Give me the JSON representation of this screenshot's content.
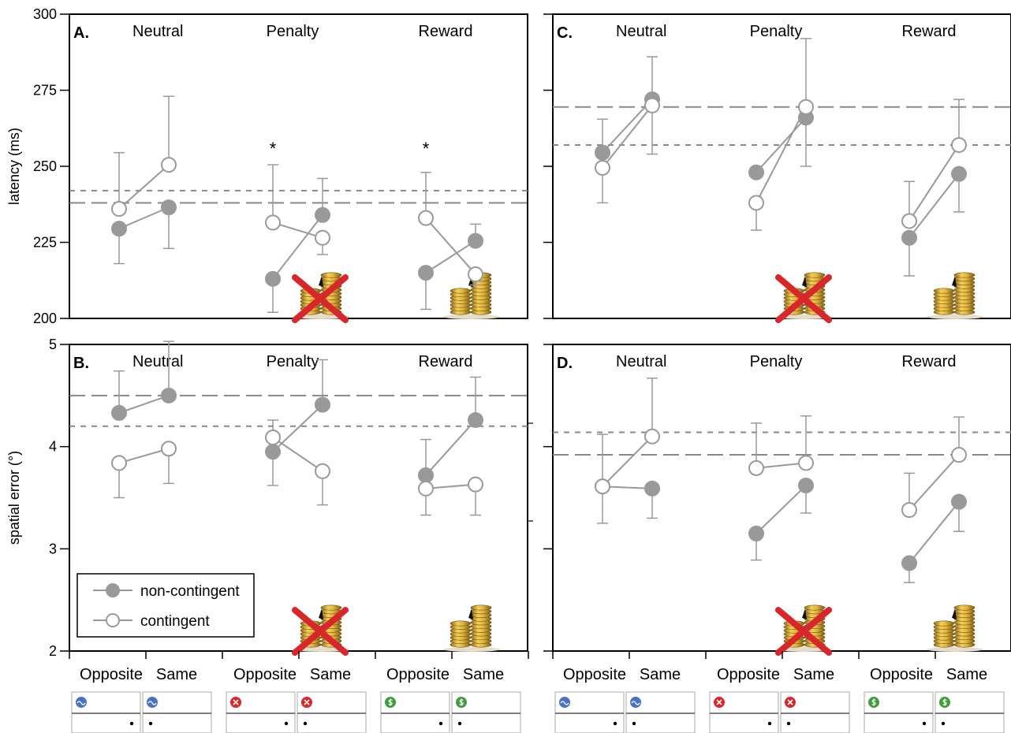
{
  "figure": {
    "legend": {
      "non_contingent": "non-contingent",
      "contingent": "contingent"
    }
  },
  "colors": {
    "series": "#999999",
    "axis": "#000000",
    "reference_line": "#888888",
    "cross": "#d9262b",
    "coin": "#d4a52a",
    "neutral_icon": "#4a72c4",
    "penalty_icon": "#d9262b",
    "reward_icon": "#3f9c3f"
  },
  "icons": {
    "penalty_marker": "crossed-out-coins-icon",
    "reward_marker": "coin-stack-icon",
    "neutral_cue": "wave-icon",
    "penalty_cue": "x-circle-icon",
    "reward_cue": "dollar-icon"
  },
  "chart_data": [
    {
      "panel": "A.",
      "type": "line",
      "ylabel": "latency (ms)",
      "ylim": [
        200,
        300
      ],
      "yticks": [
        "200",
        "225",
        "250",
        "275",
        "300"
      ],
      "conditions": [
        "Neutral",
        "Penalty",
        "Reward"
      ],
      "categories": [
        "Opposite",
        "Same"
      ],
      "series": [
        {
          "name": "non-contingent",
          "marker": "filled",
          "values": [
            [
              229.5,
              236.5
            ],
            [
              213,
              234
            ],
            [
              215,
              225.5
            ]
          ],
          "err_lo": [
            [
              218,
              223
            ],
            [
              202,
              0
            ],
            [
              203,
              0
            ]
          ],
          "err_hi": [
            [
              0,
              0
            ],
            [
              0,
              246
            ],
            [
              0,
              231
            ]
          ]
        },
        {
          "name": "contingent",
          "marker": "open",
          "values": [
            [
              236,
              250.5
            ],
            [
              231.5,
              226.5
            ],
            [
              233,
              214.5
            ]
          ],
          "err_lo": [
            [
              0,
              0
            ],
            [
              0,
              221
            ],
            [
              0,
              211
            ]
          ],
          "err_hi": [
            [
              254.5,
              273
            ],
            [
              250.5,
              0
            ],
            [
              248,
              0
            ]
          ]
        }
      ],
      "reference_lines": [
        {
          "style": "long-dash",
          "y": 238
        },
        {
          "style": "short-dash",
          "y": 242
        }
      ],
      "annotations": [
        {
          "text": "*",
          "condition": "Penalty"
        },
        {
          "text": "*",
          "condition": "Reward"
        }
      ],
      "show_ytick_labels": true
    },
    {
      "panel": "B.",
      "type": "line",
      "ylabel": "spatial error (°)",
      "ylim": [
        2,
        5
      ],
      "yticks": [
        "2",
        "3",
        "4",
        "5"
      ],
      "conditions": [
        "Neutral",
        "Penalty",
        "Reward"
      ],
      "categories": [
        "Opposite",
        "Same"
      ],
      "series": [
        {
          "name": "non-contingent",
          "marker": "filled",
          "values": [
            [
              4.33,
              4.5
            ],
            [
              3.95,
              4.41
            ],
            [
              3.72,
              4.26
            ]
          ],
          "err_lo": [
            [
              0,
              0
            ],
            [
              3.62,
              0
            ],
            [
              0,
              0
            ]
          ],
          "err_hi": [
            [
              4.74,
              5.03
            ],
            [
              0,
              4.85
            ],
            [
              4.07,
              4.68
            ]
          ]
        },
        {
          "name": "contingent",
          "marker": "open",
          "values": [
            [
              3.84,
              3.98
            ],
            [
              4.09,
              3.76
            ],
            [
              3.59,
              3.63
            ]
          ],
          "err_lo": [
            [
              3.5,
              3.64
            ],
            [
              0,
              3.43
            ],
            [
              3.33,
              3.33
            ]
          ],
          "err_hi": [
            [
              0,
              0
            ],
            [
              4.26,
              0
            ],
            [
              0,
              0
            ]
          ]
        }
      ],
      "reference_lines": [
        {
          "style": "long-dash",
          "y": 4.5
        },
        {
          "style": "short-dash",
          "y": 4.2
        }
      ],
      "annotations": [],
      "show_ytick_labels": true
    },
    {
      "panel": "C.",
      "type": "line",
      "ylabel": "",
      "ylim": [
        200,
        300
      ],
      "yticks": [
        "",
        "",
        "",
        "",
        ""
      ],
      "conditions": [
        "Neutral",
        "Penalty",
        "Reward"
      ],
      "categories": [
        "Opposite",
        "Same"
      ],
      "series": [
        {
          "name": "non-contingent",
          "marker": "filled",
          "values": [
            [
              254.5,
              272
            ],
            [
              248,
              266
            ],
            [
              226.5,
              247.5
            ]
          ],
          "err_lo": [
            [
              0,
              0
            ],
            [
              0,
              250
            ],
            [
              214,
              235
            ]
          ],
          "err_hi": [
            [
              265.5,
              286
            ],
            [
              0,
              0
            ],
            [
              0,
              0
            ]
          ]
        },
        {
          "name": "contingent",
          "marker": "open",
          "values": [
            [
              249.5,
              270
            ],
            [
              238,
              269.5
            ],
            [
              232,
              257
            ]
          ],
          "err_lo": [
            [
              238,
              254
            ],
            [
              229,
              0
            ],
            [
              0,
              0
            ]
          ],
          "err_hi": [
            [
              0,
              0
            ],
            [
              0,
              292
            ],
            [
              245,
              272
            ]
          ]
        }
      ],
      "reference_lines": [
        {
          "style": "long-dash",
          "y": 269.5
        },
        {
          "style": "short-dash",
          "y": 257
        }
      ],
      "annotations": [],
      "show_ytick_labels": false
    },
    {
      "panel": "D.",
      "type": "line",
      "ylabel": "",
      "ylim": [
        2,
        5
      ],
      "yticks": [
        "",
        "",
        "",
        ""
      ],
      "conditions": [
        "Neutral",
        "Penalty",
        "Reward"
      ],
      "categories": [
        "Opposite",
        "Same"
      ],
      "series": [
        {
          "name": "non-contingent",
          "marker": "filled",
          "values": [
            [
              3.61,
              3.59
            ],
            [
              3.15,
              3.62
            ],
            [
              2.86,
              3.46
            ]
          ],
          "err_lo": [
            [
              3.25,
              3.3
            ],
            [
              2.89,
              3.35
            ],
            [
              2.67,
              3.17
            ]
          ],
          "err_hi": [
            [
              0,
              0
            ],
            [
              0,
              0
            ],
            [
              0,
              0
            ]
          ]
        },
        {
          "name": "contingent",
          "marker": "open",
          "values": [
            [
              3.61,
              4.1
            ],
            [
              3.79,
              3.84
            ],
            [
              3.38,
              3.92
            ]
          ],
          "err_lo": [
            [
              0,
              0
            ],
            [
              0,
              0
            ],
            [
              0,
              0
            ]
          ],
          "err_hi": [
            [
              4.12,
              4.67
            ],
            [
              4.23,
              4.3
            ],
            [
              3.74,
              4.29
            ]
          ]
        }
      ],
      "reference_lines": [
        {
          "style": "long-dash",
          "y": 3.92
        },
        {
          "style": "short-dash",
          "y": 4.14
        }
      ],
      "annotations": [],
      "show_ytick_labels": false
    }
  ]
}
